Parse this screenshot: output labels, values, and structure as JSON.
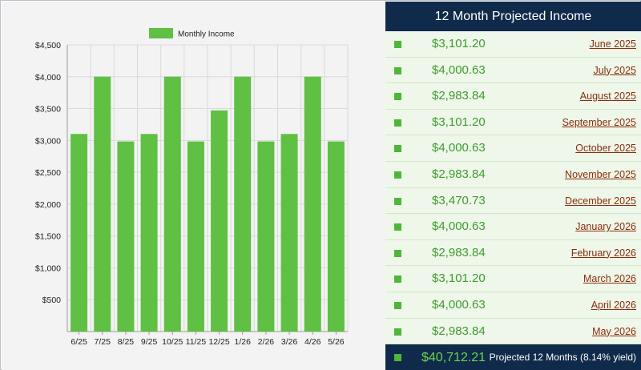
{
  "chart_data": {
    "type": "bar",
    "categories": [
      "6/25",
      "7/25",
      "8/25",
      "9/25",
      "10/25",
      "11/25",
      "12/25",
      "1/26",
      "2/26",
      "3/26",
      "4/26",
      "5/26"
    ],
    "series": [
      {
        "name": "Monthly Income",
        "values": [
          3101.2,
          4000.63,
          2983.84,
          3101.2,
          4000.63,
          2983.84,
          3470.73,
          4000.63,
          2983.84,
          3101.2,
          4000.63,
          2983.84
        ]
      }
    ],
    "ylim": [
      0,
      4500
    ],
    "yticks": [
      500,
      1000,
      1500,
      2000,
      2500,
      3000,
      3500,
      4000,
      4500
    ],
    "ytick_labels": [
      "$500",
      "$1,000",
      "$1,500",
      "$2,000",
      "$2,500",
      "$3,000",
      "$3,500",
      "$4,000",
      "$4,500"
    ],
    "grid": true,
    "legend": "top-center",
    "colors": {
      "bar": "#5fc043",
      "grid": "#d9d9d9",
      "axis": "#9a9a9a"
    }
  },
  "table": {
    "title": "12 Month Projected Income",
    "rows": [
      {
        "amount": "$3,101.20",
        "month": "June 2025"
      },
      {
        "amount": "$4,000.63",
        "month": "July 2025"
      },
      {
        "amount": "$2,983.84",
        "month": "August 2025"
      },
      {
        "amount": "$3,101.20",
        "month": "September 2025"
      },
      {
        "amount": "$4,000.63",
        "month": "October 2025"
      },
      {
        "amount": "$2,983.84",
        "month": "November 2025"
      },
      {
        "amount": "$3,470.73",
        "month": "December 2025"
      },
      {
        "amount": "$4,000.63",
        "month": "January 2026"
      },
      {
        "amount": "$2,983.84",
        "month": "February 2026"
      },
      {
        "amount": "$3,101.20",
        "month": "March 2026"
      },
      {
        "amount": "$4,000.63",
        "month": "April 2026"
      },
      {
        "amount": "$2,983.84",
        "month": "May 2026"
      }
    ],
    "total": {
      "amount": "$40,712.21",
      "label": "Projected 12 Months (8.14% yield)"
    },
    "colors": {
      "header": "#0f2a4a",
      "row_bg": "#eef7ea",
      "amount": "#3e9b2e",
      "link": "#8b2d0a",
      "marker": "#4fb63a"
    }
  }
}
